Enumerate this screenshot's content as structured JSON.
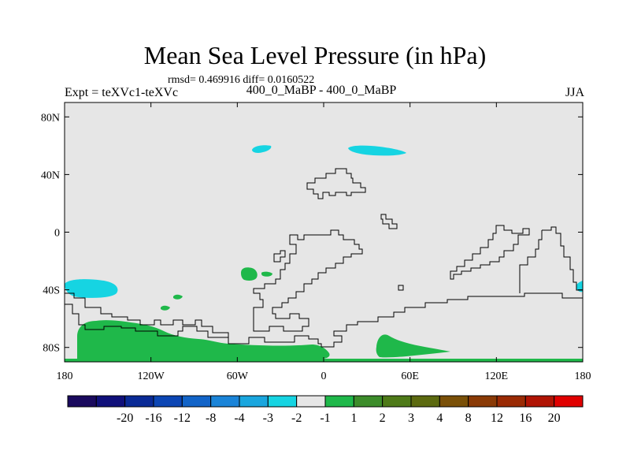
{
  "title": "Mean Sea Level Pressure (in hPa)",
  "stats": "rmsd= 0.469916 diff= 0.0160522",
  "experiment": "Expt = teXVc1-teXVc",
  "subtitle": "400_0_MaBP - 400_0_MaBP",
  "season": "JJA",
  "map": {
    "lon_range": [
      -180,
      180
    ],
    "lat_range": [
      -90,
      90
    ],
    "x_ticks": [
      {
        "lon": -180,
        "label": "180"
      },
      {
        "lon": -120,
        "label": "120W"
      },
      {
        "lon": -60,
        "label": "60W"
      },
      {
        "lon": 0,
        "label": "0"
      },
      {
        "lon": 60,
        "label": "60E"
      },
      {
        "lon": 120,
        "label": "120E"
      },
      {
        "lon": 180,
        "label": "180"
      }
    ],
    "y_ticks": [
      {
        "lat": 80,
        "label": "80N"
      },
      {
        "lat": 40,
        "label": "40N"
      },
      {
        "lat": 0,
        "label": "0"
      },
      {
        "lat": -40,
        "label": "40S"
      },
      {
        "lat": -80,
        "label": "80S"
      }
    ],
    "background_color": "#e6e6e6"
  },
  "colorbar": {
    "colors": [
      "#1a0a5e",
      "#10107a",
      "#0a2a96",
      "#0c46b4",
      "#1264c8",
      "#1a84d8",
      "#1aa6de",
      "#16d4e2",
      "#e6e6e6",
      "#1fb84a",
      "#3c8c2a",
      "#4e7a18",
      "#5c6a10",
      "#7a5008",
      "#8a3a06",
      "#9a2a04",
      "#b01404",
      "#e00000"
    ],
    "labels": [
      "-20",
      "-16",
      "-12",
      "-8",
      "-4",
      "-3",
      "-2",
      "-1",
      "1",
      "2",
      "3",
      "4",
      "8",
      "12",
      "16",
      "20"
    ]
  }
}
